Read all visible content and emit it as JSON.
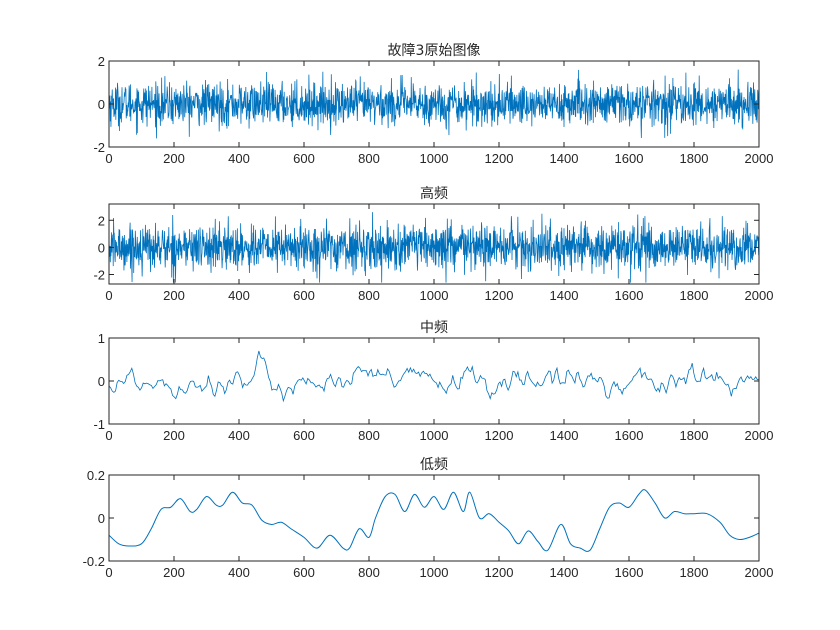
{
  "chart_data": [
    {
      "type": "line",
      "title": "故障3原始图像",
      "xlim": [
        0,
        2000
      ],
      "ylim": [
        -2,
        2
      ],
      "xticks": [
        0,
        200,
        400,
        600,
        800,
        1000,
        1200,
        1400,
        1600,
        1800,
        2000
      ],
      "yticks": [
        -2,
        0,
        2
      ],
      "color": "#0072BD",
      "signal": {
        "kind": "noise",
        "n": 2000,
        "std": 0.5,
        "clip": 1.6
      }
    },
    {
      "type": "line",
      "title": "高频",
      "xlim": [
        0,
        2000
      ],
      "ylim": [
        -2.7,
        3.2
      ],
      "xticks": [
        0,
        200,
        400,
        600,
        800,
        1000,
        1200,
        1400,
        1600,
        1800,
        2000
      ],
      "yticks": [
        -2,
        0,
        2
      ],
      "color": "#0072BD",
      "signal": {
        "kind": "noise",
        "n": 2000,
        "std": 0.85,
        "clip": 2.6
      }
    },
    {
      "type": "line",
      "title": "中频",
      "xlim": [
        0,
        2000
      ],
      "ylim": [
        -1,
        1
      ],
      "xticks": [
        0,
        200,
        400,
        600,
        800,
        1000,
        1200,
        1400,
        1600,
        1800,
        2000
      ],
      "yticks": [
        -1,
        0,
        1
      ],
      "color": "#0072BD",
      "signal": {
        "kind": "oscillation",
        "n": 400,
        "amplitude": 0.3,
        "peak": 0.72
      }
    },
    {
      "type": "line",
      "title": "低频",
      "xlim": [
        0,
        2000
      ],
      "ylim": [
        -0.2,
        0.2
      ],
      "xticks": [
        0,
        200,
        400,
        600,
        800,
        1000,
        1200,
        1400,
        1600,
        1800,
        2000
      ],
      "yticks": [
        -0.2,
        0,
        0.2
      ],
      "color": "#0072BD",
      "x": [
        0,
        30,
        60,
        100,
        130,
        160,
        190,
        220,
        250,
        270,
        300,
        330,
        350,
        380,
        410,
        440,
        470,
        500,
        530,
        560,
        600,
        640,
        680,
        720,
        740,
        770,
        800,
        820,
        850,
        880,
        910,
        940,
        970,
        1000,
        1030,
        1060,
        1090,
        1110,
        1140,
        1170,
        1200,
        1230,
        1260,
        1290,
        1320,
        1350,
        1390,
        1420,
        1450,
        1480,
        1510,
        1540,
        1570,
        1600,
        1630,
        1650,
        1680,
        1710,
        1740,
        1770,
        1800,
        1840,
        1880,
        1910,
        1940,
        1970,
        2000
      ],
      "y": [
        -0.08,
        -0.12,
        -0.13,
        -0.12,
        -0.05,
        0.04,
        0.05,
        0.09,
        0.03,
        0.04,
        0.1,
        0.06,
        0.06,
        0.12,
        0.07,
        0.06,
        -0.01,
        -0.03,
        -0.02,
        -0.05,
        -0.09,
        -0.14,
        -0.08,
        -0.14,
        -0.14,
        -0.05,
        -0.09,
        0.0,
        0.1,
        0.11,
        0.03,
        0.11,
        0.05,
        0.1,
        0.04,
        0.12,
        0.03,
        0.12,
        0.0,
        0.02,
        -0.02,
        -0.06,
        -0.12,
        -0.06,
        -0.11,
        -0.15,
        -0.03,
        -0.12,
        -0.14,
        -0.15,
        -0.05,
        0.05,
        0.07,
        0.05,
        0.11,
        0.13,
        0.07,
        0.0,
        0.03,
        0.02,
        0.02,
        0.02,
        -0.02,
        -0.08,
        -0.1,
        -0.09,
        -0.07
      ]
    }
  ]
}
